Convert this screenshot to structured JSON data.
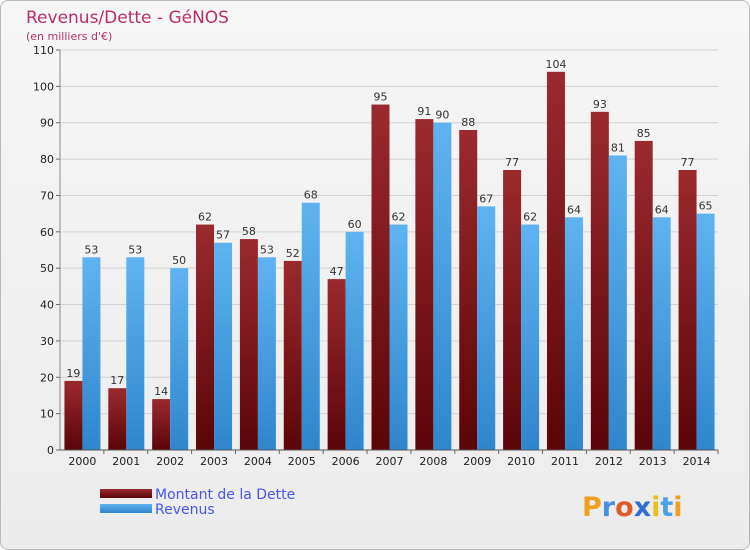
{
  "chart_data": {
    "type": "bar",
    "title": "Revenus/Dette - GéNOS",
    "subtitle": "(en milliers d'€)",
    "categories": [
      "2000",
      "2001",
      "2002",
      "2003",
      "2004",
      "2005",
      "2006",
      "2007",
      "2008",
      "2009",
      "2010",
      "2011",
      "2012",
      "2013",
      "2014"
    ],
    "series": [
      {
        "name": "Montant de la Dette",
        "color": "#7a1518",
        "values": [
          19,
          17,
          14,
          62,
          58,
          52,
          47,
          95,
          91,
          88,
          77,
          104,
          93,
          85,
          77
        ]
      },
      {
        "name": "Revenus",
        "color": "#4aa3e6",
        "values": [
          53,
          53,
          50,
          57,
          53,
          68,
          60,
          62,
          90,
          67,
          62,
          64,
          81,
          64,
          65
        ]
      }
    ],
    "ylim": [
      0,
      110
    ],
    "yticks": [
      0,
      10,
      20,
      30,
      40,
      50,
      60,
      70,
      80,
      90,
      100,
      110
    ],
    "grid": true,
    "legend": "bottom-left"
  },
  "logo": {
    "text": "Proxiti"
  }
}
